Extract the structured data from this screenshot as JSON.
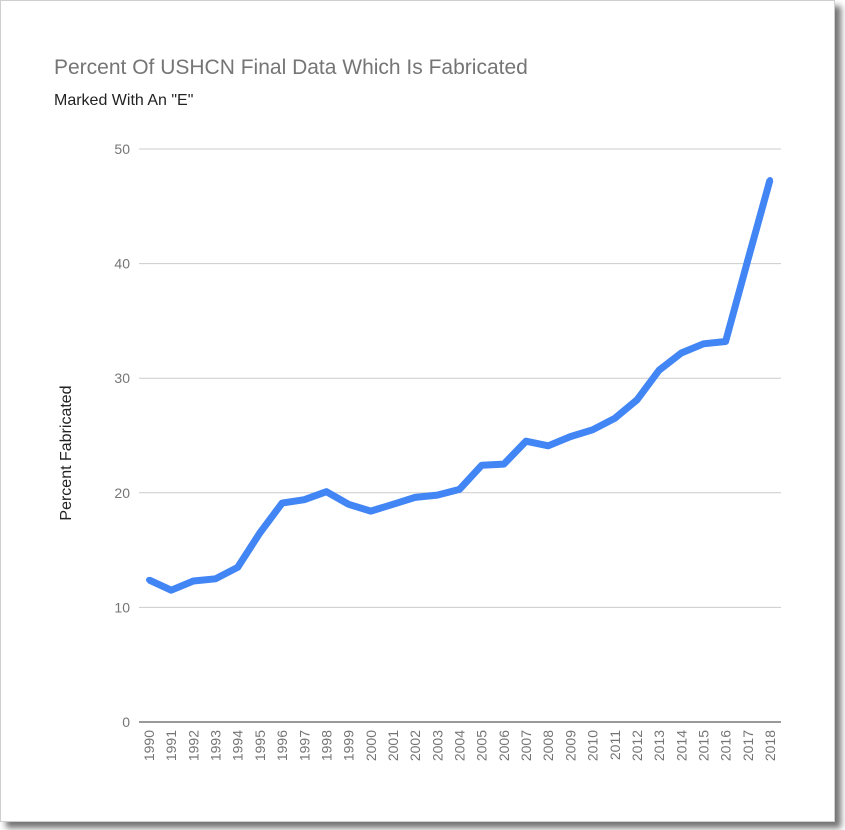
{
  "chart_data": {
    "type": "line",
    "title": "Percent Of USHCN Final Data Which Is Fabricated",
    "subtitle": "Marked With An \"E\"",
    "xlabel": "",
    "ylabel": "Percent Fabricated",
    "ylim": [
      0,
      50
    ],
    "yticks": [
      0,
      10,
      20,
      30,
      40,
      50
    ],
    "grid": true,
    "legend": "none",
    "line_color": "#4285f4",
    "categories": [
      "1990",
      "1991",
      "1992",
      "1993",
      "1994",
      "1995",
      "1996",
      "1997",
      "1998",
      "1999",
      "2000",
      "2001",
      "2002",
      "2003",
      "2004",
      "2005",
      "2006",
      "2007",
      "2008",
      "2009",
      "2010",
      "2011",
      "2012",
      "2013",
      "2014",
      "2015",
      "2016",
      "2017",
      "2018"
    ],
    "series": [
      {
        "values": [
          12.4,
          11.5,
          12.3,
          12.5,
          13.5,
          16.5,
          19.1,
          19.4,
          20.1,
          19.0,
          18.4,
          19.0,
          19.6,
          19.8,
          20.3,
          22.4,
          22.5,
          24.5,
          24.1,
          24.9,
          25.5,
          26.5,
          28.1,
          30.7,
          32.2,
          33.0,
          33.2,
          40.3,
          47.3
        ]
      }
    ]
  }
}
